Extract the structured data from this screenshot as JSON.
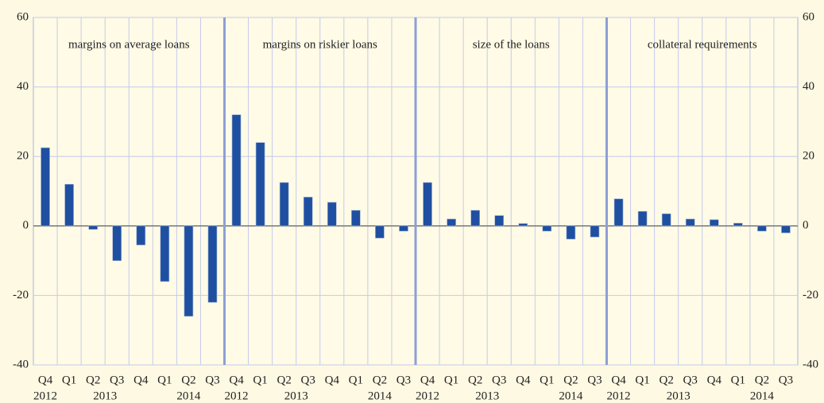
{
  "chart_data": {
    "type": "bar",
    "color": "#1f4fa0",
    "ylim": [
      -40,
      60
    ],
    "yticks": [
      -40,
      -20,
      0,
      20,
      40,
      60
    ],
    "y2lim": [
      -40,
      60
    ],
    "y2ticks": [
      -40,
      -20,
      0,
      20,
      40,
      60
    ],
    "grid": true,
    "panels": [
      {
        "title": "margins on average loans",
        "groups": [
          {
            "name": "2012",
            "categories": [
              "Q4"
            ]
          },
          {
            "name": "2013",
            "categories": [
              "Q1",
              "Q2",
              "Q3",
              "Q4"
            ]
          },
          {
            "name": "2014",
            "categories": [
              "Q1",
              "Q2",
              "Q3"
            ]
          }
        ],
        "values": [
          22.5,
          12,
          -1,
          -10,
          -5.5,
          -16,
          -26,
          -22
        ]
      },
      {
        "title": "margins on riskier loans",
        "groups": [
          {
            "name": "2012",
            "categories": [
              "Q4"
            ]
          },
          {
            "name": "2013",
            "categories": [
              "Q1",
              "Q2",
              "Q3",
              "Q4"
            ]
          },
          {
            "name": "2014",
            "categories": [
              "Q1",
              "Q2",
              "Q3"
            ]
          }
        ],
        "values": [
          32,
          24,
          12.5,
          8.3,
          6.8,
          4.5,
          -3.5,
          -1.5
        ]
      },
      {
        "title": "size of the loans",
        "groups": [
          {
            "name": "2012",
            "categories": [
              "Q4"
            ]
          },
          {
            "name": "2013",
            "categories": [
              "Q1",
              "Q2",
              "Q3",
              "Q4"
            ]
          },
          {
            "name": "2014",
            "categories": [
              "Q1",
              "Q2",
              "Q3"
            ]
          }
        ],
        "values": [
          12.5,
          2,
          4.5,
          3,
          0.7,
          -1.5,
          -3.8,
          -3.2
        ]
      },
      {
        "title": "collateral requirements",
        "groups": [
          {
            "name": "2012",
            "categories": [
              "Q4"
            ]
          },
          {
            "name": "2013",
            "categories": [
              "Q1",
              "Q2",
              "Q3",
              "Q4"
            ]
          },
          {
            "name": "2014",
            "categories": [
              "Q1",
              "Q2",
              "Q3"
            ]
          }
        ],
        "values": [
          7.8,
          4.2,
          3.5,
          2,
          1.8,
          0.8,
          -1.5,
          -2
        ]
      }
    ]
  }
}
